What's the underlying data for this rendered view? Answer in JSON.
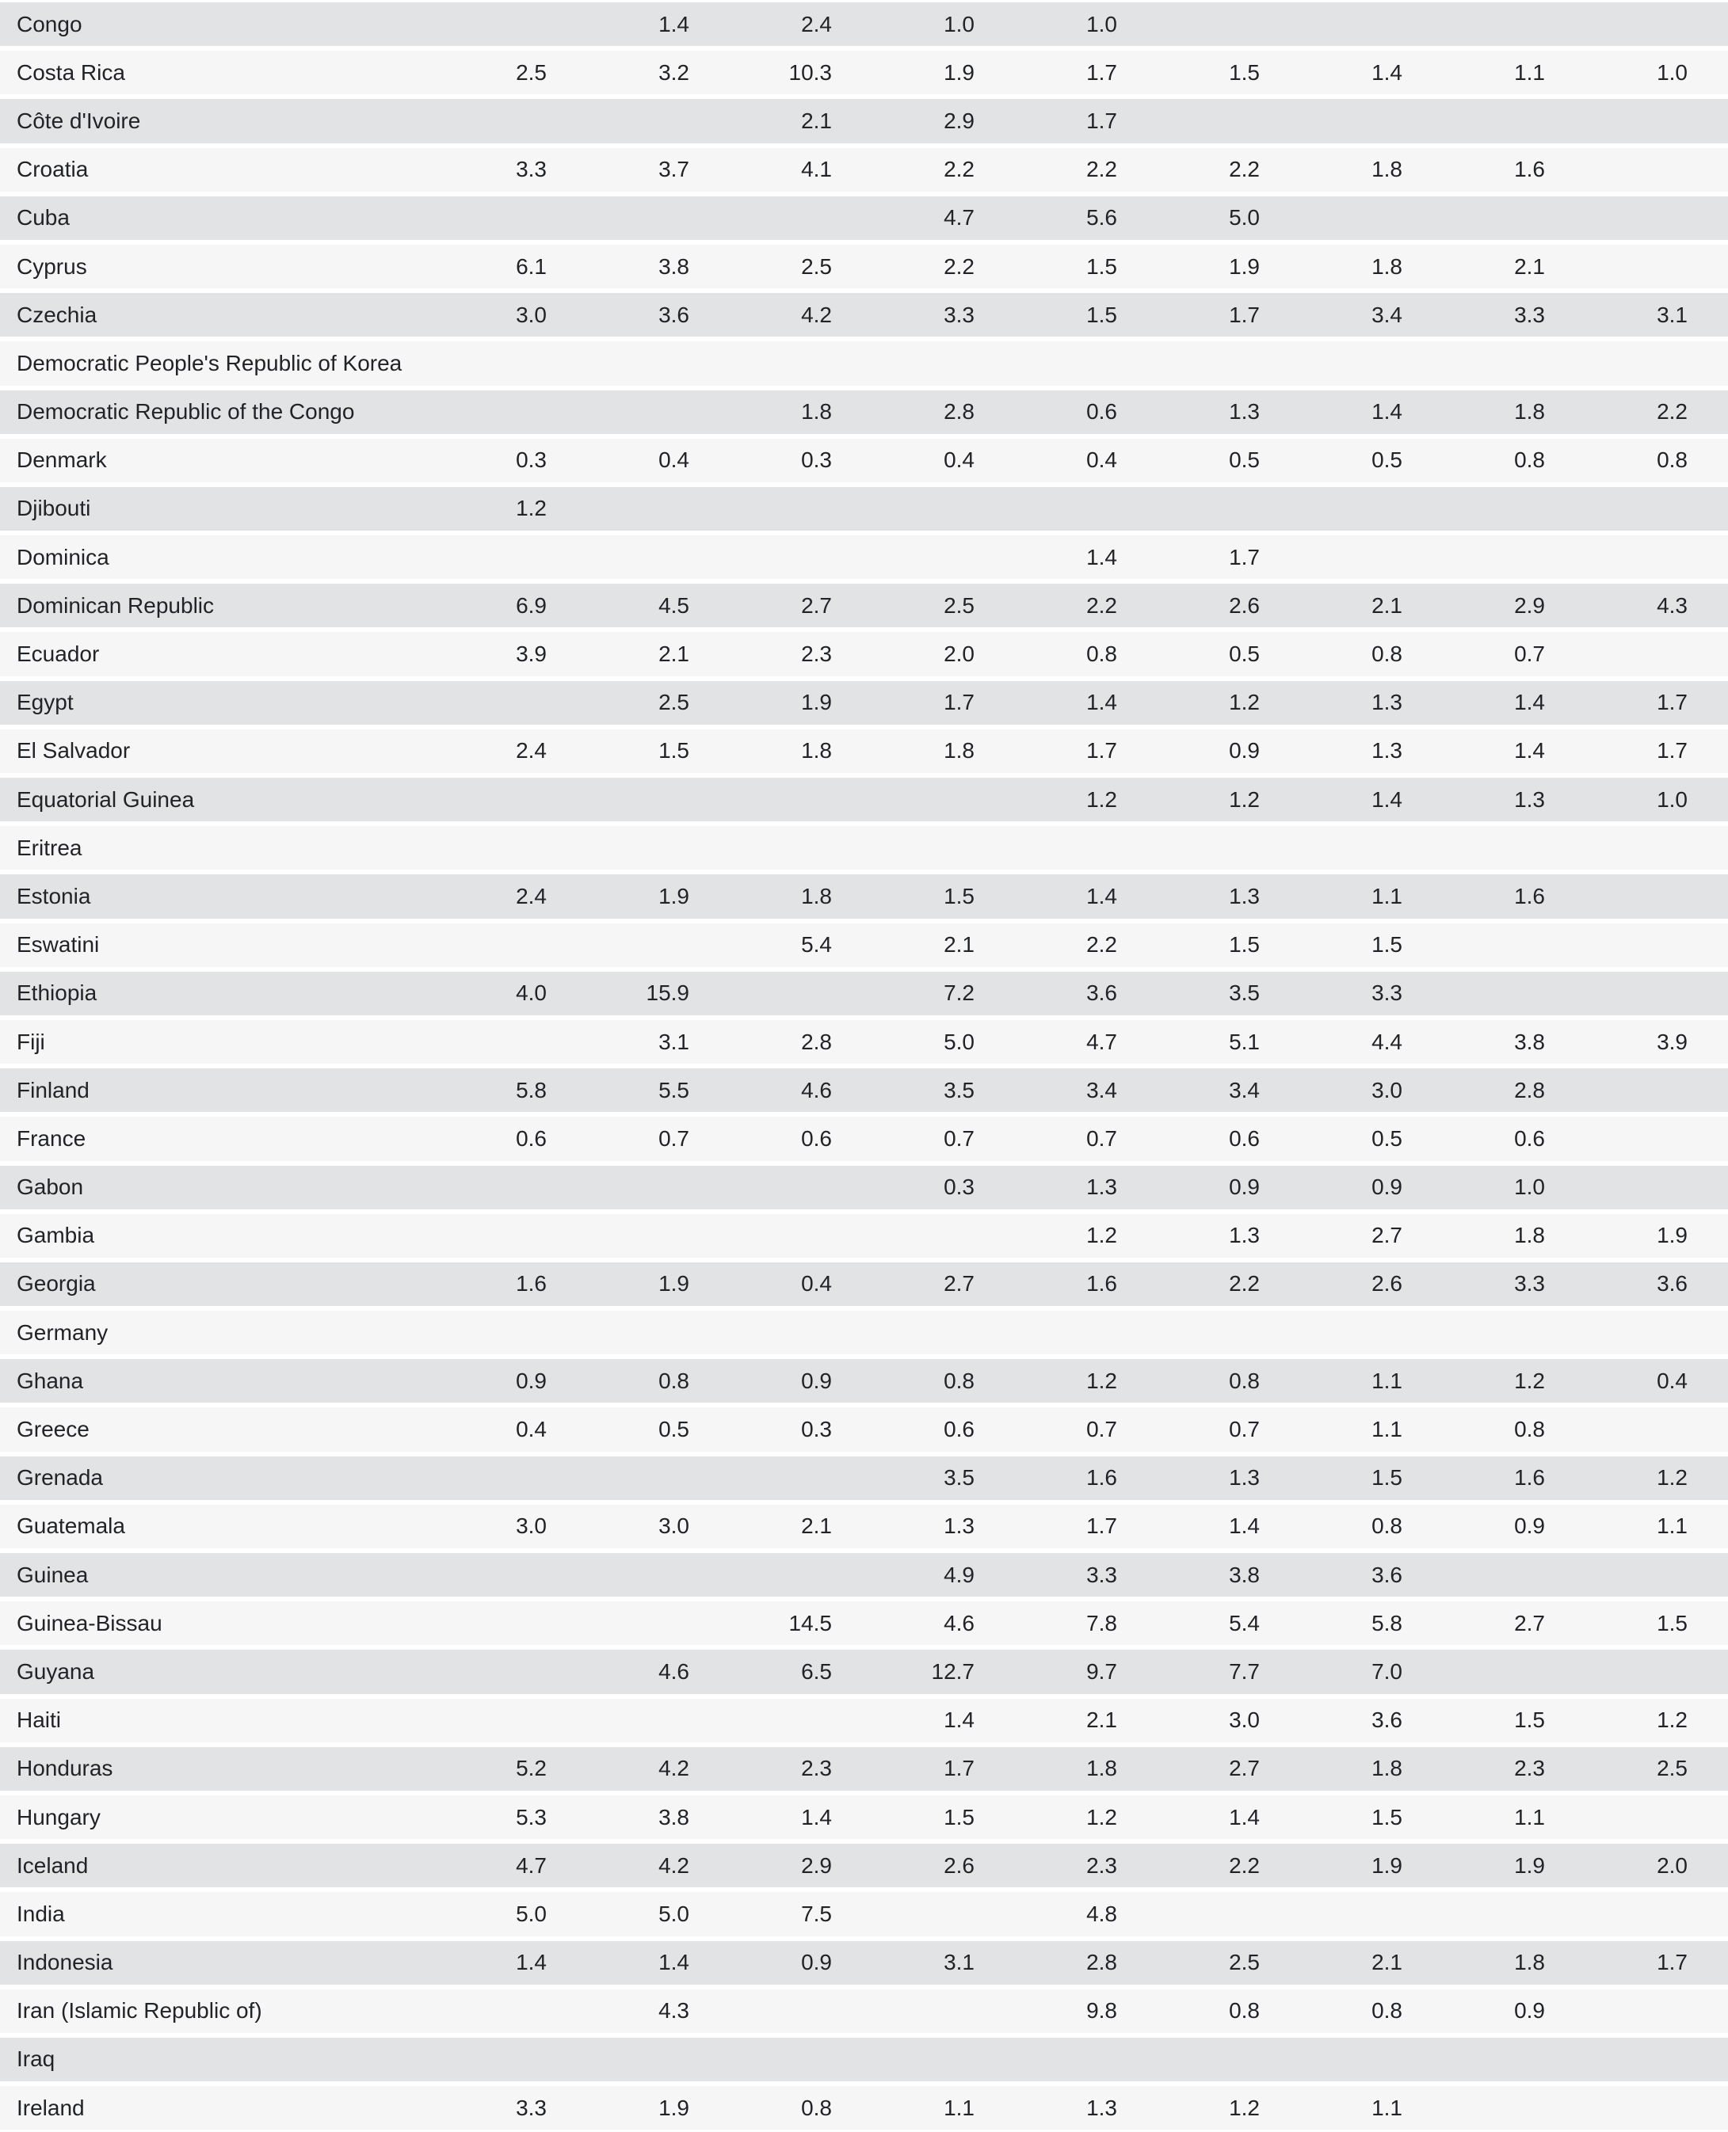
{
  "colors": {
    "row_odd_bg": "#e1e3e5",
    "row_even_bg": "#f6f6f7",
    "separator": "#ffffff",
    "text": "#212326"
  },
  "table": {
    "num_value_columns": 9,
    "rows": [
      {
        "country": "Congo",
        "values": [
          "",
          "1.4",
          "2.4",
          "1.0",
          "1.0",
          "",
          "",
          "",
          ""
        ]
      },
      {
        "country": "Costa Rica",
        "values": [
          "2.5",
          "3.2",
          "10.3",
          "1.9",
          "1.7",
          "1.5",
          "1.4",
          "1.1",
          "1.0"
        ]
      },
      {
        "country": "Côte d'Ivoire",
        "values": [
          "",
          "",
          "2.1",
          "2.9",
          "1.7",
          "",
          "",
          "",
          ""
        ]
      },
      {
        "country": "Croatia",
        "values": [
          "3.3",
          "3.7",
          "4.1",
          "2.2",
          "2.2",
          "2.2",
          "1.8",
          "1.6",
          ""
        ]
      },
      {
        "country": "Cuba",
        "values": [
          "",
          "",
          "",
          "4.7",
          "5.6",
          "5.0",
          "",
          "",
          ""
        ]
      },
      {
        "country": "Cyprus",
        "values": [
          "6.1",
          "3.8",
          "2.5",
          "2.2",
          "1.5",
          "1.9",
          "1.8",
          "2.1",
          ""
        ]
      },
      {
        "country": "Czechia",
        "values": [
          "3.0",
          "3.6",
          "4.2",
          "3.3",
          "1.5",
          "1.7",
          "3.4",
          "3.3",
          "3.1"
        ]
      },
      {
        "country": "Democratic People's Republic of Korea",
        "values": [
          "",
          "",
          "",
          "",
          "",
          "",
          "",
          "",
          ""
        ]
      },
      {
        "country": "Democratic Republic of the Congo",
        "values": [
          "",
          "",
          "1.8",
          "2.8",
          "0.6",
          "1.3",
          "1.4",
          "1.8",
          "2.2"
        ]
      },
      {
        "country": "Denmark",
        "values": [
          "0.3",
          "0.4",
          "0.3",
          "0.4",
          "0.4",
          "0.5",
          "0.5",
          "0.8",
          "0.8"
        ]
      },
      {
        "country": "Djibouti",
        "values": [
          "1.2",
          "",
          "",
          "",
          "",
          "",
          "",
          "",
          ""
        ]
      },
      {
        "country": "Dominica",
        "values": [
          "",
          "",
          "",
          "",
          "1.4",
          "1.7",
          "",
          "",
          ""
        ]
      },
      {
        "country": "Dominican Republic",
        "values": [
          "6.9",
          "4.5",
          "2.7",
          "2.5",
          "2.2",
          "2.6",
          "2.1",
          "2.9",
          "4.3"
        ]
      },
      {
        "country": "Ecuador",
        "values": [
          "3.9",
          "2.1",
          "2.3",
          "2.0",
          "0.8",
          "0.5",
          "0.8",
          "0.7",
          ""
        ]
      },
      {
        "country": "Egypt",
        "values": [
          "",
          "2.5",
          "1.9",
          "1.7",
          "1.4",
          "1.2",
          "1.3",
          "1.4",
          "1.7"
        ]
      },
      {
        "country": "El Salvador",
        "values": [
          "2.4",
          "1.5",
          "1.8",
          "1.8",
          "1.7",
          "0.9",
          "1.3",
          "1.4",
          "1.7"
        ]
      },
      {
        "country": "Equatorial Guinea",
        "values": [
          "",
          "",
          "",
          "",
          "1.2",
          "1.2",
          "1.4",
          "1.3",
          "1.0"
        ]
      },
      {
        "country": "Eritrea",
        "values": [
          "",
          "",
          "",
          "",
          "",
          "",
          "",
          "",
          ""
        ]
      },
      {
        "country": "Estonia",
        "values": [
          "2.4",
          "1.9",
          "1.8",
          "1.5",
          "1.4",
          "1.3",
          "1.1",
          "1.6",
          ""
        ]
      },
      {
        "country": "Eswatini",
        "values": [
          "",
          "",
          "5.4",
          "2.1",
          "2.2",
          "1.5",
          "1.5",
          "",
          ""
        ]
      },
      {
        "country": "Ethiopia",
        "values": [
          "4.0",
          "15.9",
          "",
          "7.2",
          "3.6",
          "3.5",
          "3.3",
          "",
          ""
        ]
      },
      {
        "country": "Fiji",
        "values": [
          "",
          "3.1",
          "2.8",
          "5.0",
          "4.7",
          "5.1",
          "4.4",
          "3.8",
          "3.9"
        ]
      },
      {
        "country": "Finland",
        "values": [
          "5.8",
          "5.5",
          "4.6",
          "3.5",
          "3.4",
          "3.4",
          "3.0",
          "2.8",
          ""
        ]
      },
      {
        "country": "France",
        "values": [
          "0.6",
          "0.7",
          "0.6",
          "0.7",
          "0.7",
          "0.6",
          "0.5",
          "0.6",
          ""
        ]
      },
      {
        "country": "Gabon",
        "values": [
          "",
          "",
          "",
          "0.3",
          "1.3",
          "0.9",
          "0.9",
          "1.0",
          ""
        ]
      },
      {
        "country": "Gambia",
        "values": [
          "",
          "",
          "",
          "",
          "1.2",
          "1.3",
          "2.7",
          "1.8",
          "1.9"
        ]
      },
      {
        "country": "Georgia",
        "values": [
          "1.6",
          "1.9",
          "0.4",
          "2.7",
          "1.6",
          "2.2",
          "2.6",
          "3.3",
          "3.6"
        ]
      },
      {
        "country": "Germany",
        "values": [
          "",
          "",
          "",
          "",
          "",
          "",
          "",
          "",
          ""
        ]
      },
      {
        "country": "Ghana",
        "values": [
          "0.9",
          "0.8",
          "0.9",
          "0.8",
          "1.2",
          "0.8",
          "1.1",
          "1.2",
          "0.4"
        ]
      },
      {
        "country": "Greece",
        "values": [
          "0.4",
          "0.5",
          "0.3",
          "0.6",
          "0.7",
          "0.7",
          "1.1",
          "0.8",
          ""
        ]
      },
      {
        "country": "Grenada",
        "values": [
          "",
          "",
          "",
          "3.5",
          "1.6",
          "1.3",
          "1.5",
          "1.6",
          "1.2"
        ]
      },
      {
        "country": "Guatemala",
        "values": [
          "3.0",
          "3.0",
          "2.1",
          "1.3",
          "1.7",
          "1.4",
          "0.8",
          "0.9",
          "1.1"
        ]
      },
      {
        "country": "Guinea",
        "values": [
          "",
          "",
          "",
          "4.9",
          "3.3",
          "3.8",
          "3.6",
          "",
          ""
        ]
      },
      {
        "country": "Guinea-Bissau",
        "values": [
          "",
          "",
          "14.5",
          "4.6",
          "7.8",
          "5.4",
          "5.8",
          "2.7",
          "1.5"
        ]
      },
      {
        "country": "Guyana",
        "values": [
          "",
          "4.6",
          "6.5",
          "12.7",
          "9.7",
          "7.7",
          "7.0",
          "",
          ""
        ]
      },
      {
        "country": "Haiti",
        "values": [
          "",
          "",
          "",
          "1.4",
          "2.1",
          "3.0",
          "3.6",
          "1.5",
          "1.2"
        ]
      },
      {
        "country": "Honduras",
        "values": [
          "5.2",
          "4.2",
          "2.3",
          "1.7",
          "1.8",
          "2.7",
          "1.8",
          "2.3",
          "2.5"
        ]
      },
      {
        "country": "Hungary",
        "values": [
          "5.3",
          "3.8",
          "1.4",
          "1.5",
          "1.2",
          "1.4",
          "1.5",
          "1.1",
          ""
        ]
      },
      {
        "country": "Iceland",
        "values": [
          "4.7",
          "4.2",
          "2.9",
          "2.6",
          "2.3",
          "2.2",
          "1.9",
          "1.9",
          "2.0"
        ]
      },
      {
        "country": "India",
        "values": [
          "5.0",
          "5.0",
          "7.5",
          "",
          "4.8",
          "",
          "",
          "",
          ""
        ]
      },
      {
        "country": "Indonesia",
        "values": [
          "1.4",
          "1.4",
          "0.9",
          "3.1",
          "2.8",
          "2.5",
          "2.1",
          "1.8",
          "1.7"
        ]
      },
      {
        "country": "Iran (Islamic Republic of)",
        "values": [
          "",
          "4.3",
          "",
          "",
          "9.8",
          "0.8",
          "0.8",
          "0.9",
          ""
        ]
      },
      {
        "country": "Iraq",
        "values": [
          "",
          "",
          "",
          "",
          "",
          "",
          "",
          "",
          ""
        ]
      },
      {
        "country": "Ireland",
        "values": [
          "3.3",
          "1.9",
          "0.8",
          "1.1",
          "1.3",
          "1.2",
          "1.1",
          "",
          ""
        ]
      }
    ]
  }
}
